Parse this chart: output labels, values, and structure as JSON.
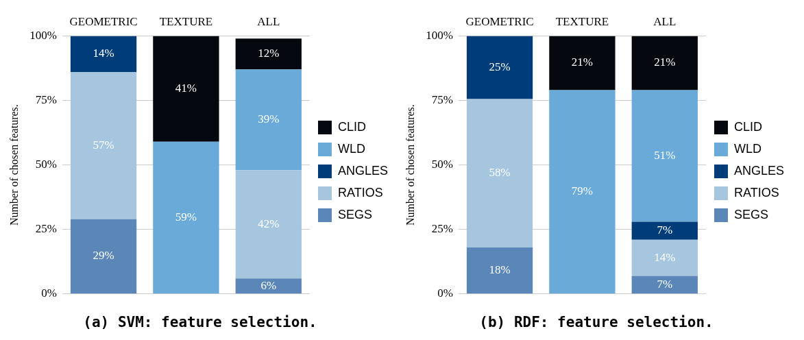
{
  "chart_data": [
    {
      "type": "bar",
      "title": "(a) SVM: feature selection.",
      "ylabel": "Number of chosen features.",
      "categories": [
        "GEOMETRIC",
        "TEXTURE",
        "ALL"
      ],
      "stacked": true,
      "grid": "y",
      "legend": "right",
      "ylim": [
        0,
        100
      ],
      "yticks": [
        {
          "value": 0,
          "label": "0%"
        },
        {
          "value": 25,
          "label": "25%"
        },
        {
          "value": 50,
          "label": "50%"
        },
        {
          "value": 75,
          "label": "75%"
        },
        {
          "value": 100,
          "label": "100%"
        }
      ],
      "series": [
        {
          "name": "SEGS",
          "color": "#5b86b8",
          "values": [
            29,
            null,
            6
          ],
          "value_labels": [
            "29%",
            null,
            "6%"
          ]
        },
        {
          "name": "RATIOS",
          "color": "#a6c6e0",
          "values": [
            57,
            null,
            42
          ],
          "value_labels": [
            "57%",
            null,
            "42%"
          ]
        },
        {
          "name": "ANGLES",
          "color": "#003c78",
          "values": [
            14,
            null,
            null
          ],
          "value_labels": [
            "14%",
            null,
            null
          ]
        },
        {
          "name": "WLD",
          "color": "#6aaad8",
          "values": [
            null,
            59,
            39
          ],
          "value_labels": [
            null,
            "59%",
            "39%"
          ]
        },
        {
          "name": "CLID",
          "color": "#05080f",
          "values": [
            null,
            41,
            12
          ],
          "value_labels": [
            null,
            "41%",
            "12%"
          ]
        }
      ]
    },
    {
      "type": "bar",
      "title": "(b) RDF: feature selection.",
      "ylabel": "Number of chosen features.",
      "categories": [
        "GEOMETRIC",
        "TEXTURE",
        "ALL"
      ],
      "stacked": true,
      "grid": "y",
      "legend": "right",
      "ylim": [
        0,
        100
      ],
      "yticks": [
        {
          "value": 0,
          "label": "0%"
        },
        {
          "value": 25,
          "label": "25%"
        },
        {
          "value": 50,
          "label": "50%"
        },
        {
          "value": 75,
          "label": "75%"
        },
        {
          "value": 100,
          "label": "100%"
        }
      ],
      "series": [
        {
          "name": "SEGS",
          "color": "#5b86b8",
          "values": [
            18,
            null,
            7
          ],
          "value_labels": [
            "18%",
            null,
            "7%"
          ]
        },
        {
          "name": "RATIOS",
          "color": "#a6c6e0",
          "values": [
            57.5,
            null,
            14
          ],
          "value_labels": [
            "58%",
            null,
            "14%"
          ]
        },
        {
          "name": "ANGLES",
          "color": "#003c78",
          "values": [
            24.5,
            null,
            7
          ],
          "value_labels": [
            "25%",
            null,
            "7%"
          ]
        },
        {
          "name": "WLD",
          "color": "#6aaad8",
          "values": [
            null,
            79,
            51
          ],
          "value_labels": [
            null,
            "79%",
            "51%"
          ]
        },
        {
          "name": "CLID",
          "color": "#05080f",
          "values": [
            null,
            21,
            21
          ],
          "value_labels": [
            null,
            "21%",
            "21%"
          ]
        }
      ]
    }
  ]
}
